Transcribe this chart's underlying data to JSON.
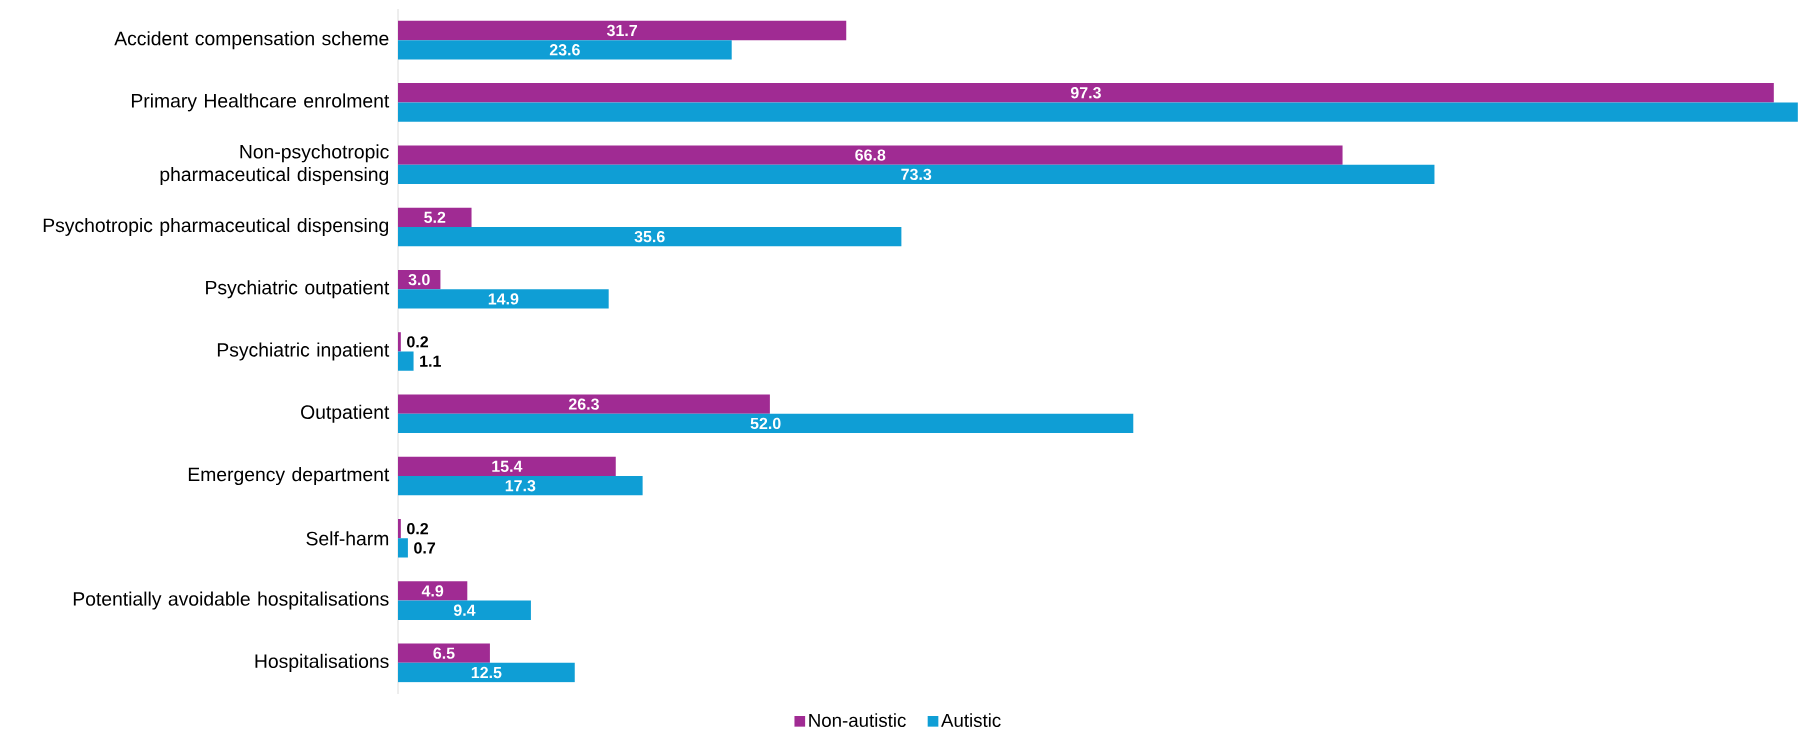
{
  "chart_data": {
    "type": "bar",
    "orientation": "horizontal",
    "categories": [
      "Accident compensation scheme",
      "Primary Healthcare enrolment",
      "Non-psychotropic pharmaceutical dispensing",
      "Psychotropic pharmaceutical dispensing",
      "Psychiatric outpatient",
      "Psychiatric inpatient",
      "Outpatient",
      "Emergency department",
      "Self-harm",
      "Potentially avoidable hospitalisations",
      "Hospitalisations"
    ],
    "series": [
      {
        "name": "Non-autistic",
        "color": "#a02b93",
        "values": [
          31.7,
          97.3,
          66.8,
          5.2,
          3.0,
          0.2,
          26.3,
          15.4,
          0.2,
          4.9,
          6.5
        ],
        "value_labels": [
          "31.7",
          "97.3",
          "66.8",
          "5.2",
          "3.0",
          "0.2",
          "26.3",
          "15.4",
          "0.2",
          "4.9",
          "6.5"
        ]
      },
      {
        "name": "Autistic",
        "color": "#0f9ed5",
        "values": [
          23.6,
          99.0,
          73.3,
          35.6,
          14.9,
          1.1,
          52.0,
          17.3,
          0.7,
          9.4,
          12.5
        ],
        "value_labels": [
          "23.6",
          null,
          "73.3",
          "35.6",
          "14.9",
          "1.1",
          "52.0",
          "17.3",
          "0.7",
          "9.4",
          "12.5"
        ]
      }
    ],
    "xlim": [
      0,
      99.0
    ],
    "tick_labels": "y",
    "legend": "bottom"
  }
}
